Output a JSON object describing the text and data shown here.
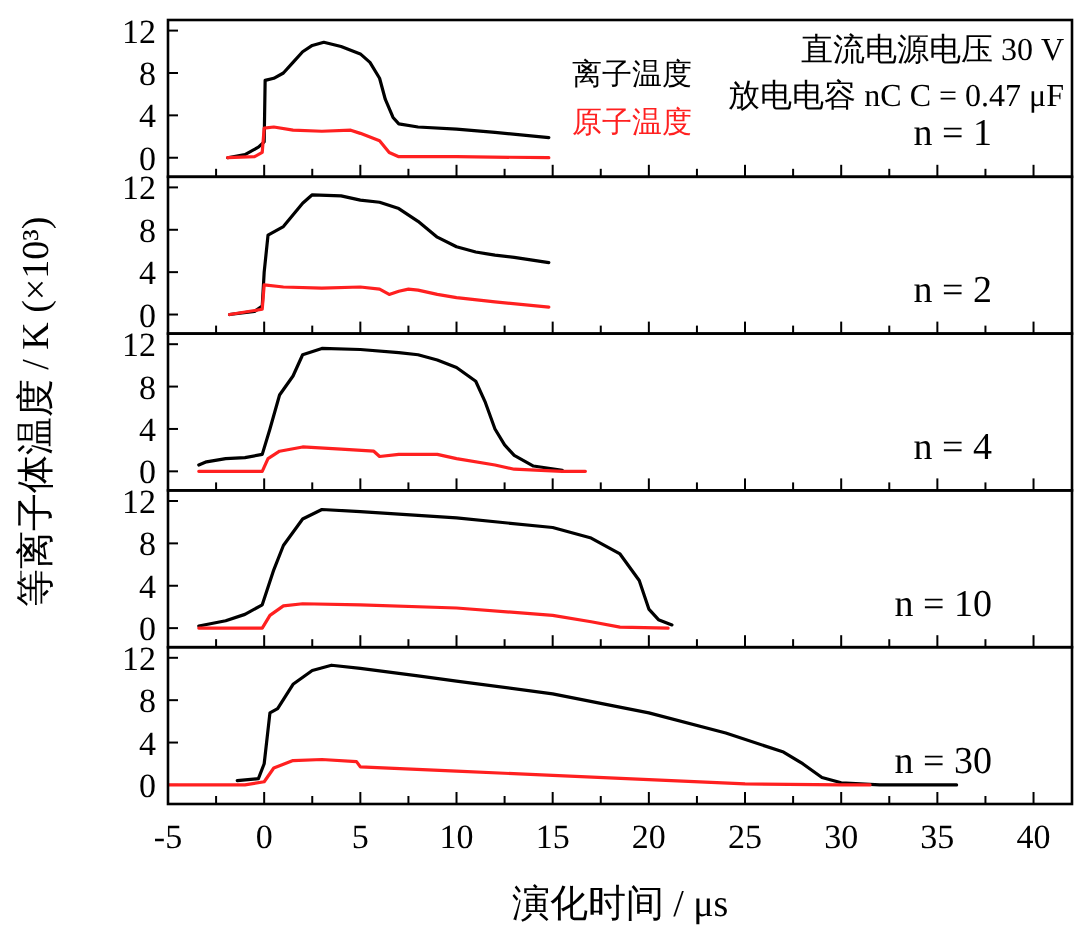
{
  "chart_data": [
    {
      "type": "line",
      "xlim": [
        -5,
        42
      ],
      "ylim": [
        -1.8,
        13
      ],
      "yticks": [
        0,
        4,
        8,
        12
      ],
      "xticks": [
        -5,
        {
          "value": -2.5,
          "label": null
        },
        0,
        {
          "value": 2.5,
          "label": null
        },
        5,
        {
          "value": 7.5,
          "label": null
        },
        10,
        {
          "value": 12.5,
          "label": null
        },
        15,
        {
          "value": 17.5,
          "label": null
        },
        20,
        {
          "value": 22.5,
          "label": null
        },
        25,
        {
          "value": 27.5,
          "label": null
        },
        30,
        {
          "value": 32.5,
          "label": null
        },
        35,
        {
          "value": 37.5,
          "label": null
        },
        40
      ],
      "tick_labels": "y",
      "legend": "right",
      "annotations": [
        "直流电源电压 30 V",
        "放电电容 nC  C = 0.47 μF",
        "n = 1"
      ],
      "series": [
        {
          "name": "离子温度",
          "color": "#000000",
          "x": [
            -1.9,
            -1,
            -0.3,
            0,
            0.05,
            0.5,
            1,
            1.5,
            2,
            2.5,
            3.1,
            4,
            5,
            5.5,
            6,
            6.3,
            6.7,
            7,
            8,
            10,
            12,
            14.8
          ],
          "values": [
            0,
            0.3,
            1.0,
            1.5,
            7.3,
            7.5,
            8,
            9,
            10,
            10.6,
            10.9,
            10.5,
            9.8,
            9,
            7.5,
            5.5,
            3.8,
            3.2,
            2.9,
            2.7,
            2.4,
            1.9
          ]
        },
        {
          "name": "原子温度",
          "color": "#ff2020",
          "x": [
            -1.9,
            -0.5,
            -0.1,
            0,
            0.5,
            1.5,
            3,
            4.5,
            5,
            6,
            6.5,
            7,
            10,
            14.8
          ],
          "values": [
            0,
            0.1,
            0.5,
            2.8,
            2.9,
            2.6,
            2.5,
            2.6,
            2.3,
            1.6,
            0.5,
            0.1,
            0.1,
            0
          ]
        }
      ]
    },
    {
      "type": "line",
      "xlim": [
        -5,
        42
      ],
      "ylim": [
        -1.8,
        13
      ],
      "yticks": [
        0,
        4,
        8,
        12
      ],
      "xticks": [
        -5,
        {
          "value": -2.5,
          "label": null
        },
        0,
        {
          "value": 2.5,
          "label": null
        },
        5,
        {
          "value": 7.5,
          "label": null
        },
        10,
        {
          "value": 12.5,
          "label": null
        },
        15,
        {
          "value": 17.5,
          "label": null
        },
        20,
        {
          "value": 22.5,
          "label": null
        },
        25,
        {
          "value": 27.5,
          "label": null
        },
        30,
        {
          "value": 32.5,
          "label": null
        },
        35,
        {
          "value": 37.5,
          "label": null
        },
        40
      ],
      "tick_labels": "y",
      "annotations": [
        "n = 2"
      ],
      "series": [
        {
          "color": "#000000",
          "x": [
            -1.8,
            -0.5,
            -0.1,
            0,
            0.2,
            1,
            2,
            2.5,
            4,
            5,
            6,
            7,
            8,
            9,
            10,
            11,
            12,
            13,
            14.8
          ],
          "values": [
            0,
            0.3,
            0.8,
            4,
            7.5,
            8.3,
            10.5,
            11.3,
            11.2,
            10.8,
            10.6,
            10,
            8.8,
            7.3,
            6.4,
            5.9,
            5.6,
            5.4,
            4.9
          ]
        },
        {
          "color": "#ff2020",
          "x": [
            -1.8,
            -0.1,
            0,
            1,
            3,
            5,
            6,
            6.5,
            7,
            7.5,
            8,
            9,
            10,
            12,
            14.8
          ],
          "values": [
            0,
            0.5,
            2.8,
            2.6,
            2.5,
            2.6,
            2.4,
            1.9,
            2.2,
            2.4,
            2.3,
            1.9,
            1.6,
            1.2,
            0.7
          ]
        }
      ]
    },
    {
      "type": "line",
      "xlim": [
        -5,
        42
      ],
      "ylim": [
        -1.8,
        13
      ],
      "yticks": [
        0,
        4,
        8,
        12
      ],
      "xticks": [
        -5,
        {
          "value": -2.5,
          "label": null
        },
        0,
        {
          "value": 2.5,
          "label": null
        },
        5,
        {
          "value": 7.5,
          "label": null
        },
        10,
        {
          "value": 12.5,
          "label": null
        },
        15,
        {
          "value": 17.5,
          "label": null
        },
        20,
        {
          "value": 22.5,
          "label": null
        },
        25,
        {
          "value": 27.5,
          "label": null
        },
        30,
        {
          "value": 32.5,
          "label": null
        },
        35,
        {
          "value": 37.5,
          "label": null
        },
        40
      ],
      "tick_labels": "y",
      "ylabel": "等离子体温度 / K (×10³)",
      "annotations": [
        "n = 4"
      ],
      "series": [
        {
          "color": "#000000",
          "x": [
            -3.4,
            -3,
            -2,
            -1,
            -0.1,
            0.3,
            0.8,
            1.5,
            2,
            3,
            5,
            7,
            8,
            9,
            10,
            11,
            11.5,
            12,
            12.5,
            13,
            14,
            15.5
          ],
          "values": [
            0.6,
            0.9,
            1.2,
            1.3,
            1.6,
            4,
            7.2,
            9,
            11,
            11.6,
            11.5,
            11.2,
            11,
            10.5,
            9.8,
            8.5,
            6.5,
            4,
            2.5,
            1.5,
            0.5,
            0.1
          ]
        },
        {
          "color": "#ff2020",
          "x": [
            -3.4,
            -0.1,
            0.2,
            0.8,
            2,
            4,
            5.7,
            6,
            7,
            9,
            10,
            12,
            13,
            15.5,
            16.7
          ],
          "values": [
            0,
            0,
            1.2,
            1.9,
            2.3,
            2.1,
            1.9,
            1.4,
            1.6,
            1.6,
            1.2,
            0.6,
            0.2,
            0,
            0
          ]
        }
      ]
    },
    {
      "type": "line",
      "xlim": [
        -5,
        42
      ],
      "ylim": [
        -1.8,
        13
      ],
      "yticks": [
        0,
        4,
        8,
        12
      ],
      "xticks": [
        -5,
        {
          "value": -2.5,
          "label": null
        },
        0,
        {
          "value": 2.5,
          "label": null
        },
        5,
        {
          "value": 7.5,
          "label": null
        },
        10,
        {
          "value": 12.5,
          "label": null
        },
        15,
        {
          "value": 17.5,
          "label": null
        },
        20,
        {
          "value": 22.5,
          "label": null
        },
        25,
        {
          "value": 27.5,
          "label": null
        },
        30,
        {
          "value": 32.5,
          "label": null
        },
        35,
        {
          "value": 37.5,
          "label": null
        },
        40
      ],
      "tick_labels": "y",
      "annotations": [
        "n = 10"
      ],
      "series": [
        {
          "color": "#000000",
          "x": [
            -3.4,
            -2,
            -1,
            -0.1,
            0.5,
            1,
            2,
            3,
            5,
            10,
            15,
            17,
            18.5,
            19.5,
            20,
            20.5,
            21.2
          ],
          "values": [
            0.2,
            0.7,
            1.3,
            2.2,
            5.5,
            7.8,
            10.3,
            11.2,
            11,
            10.4,
            9.5,
            8.5,
            7,
            4.5,
            1.8,
            0.8,
            0.3
          ]
        },
        {
          "color": "#ff2020",
          "x": [
            -3.4,
            -0.1,
            0.3,
            1,
            2,
            5,
            10,
            15,
            17,
            18.5,
            21
          ],
          "values": [
            0,
            0,
            1.2,
            2.1,
            2.3,
            2.2,
            1.9,
            1.2,
            0.6,
            0.1,
            0
          ]
        }
      ]
    },
    {
      "type": "line",
      "xlim": [
        -5,
        42
      ],
      "ylim": [
        -1.8,
        13
      ],
      "yticks": [
        0,
        4,
        8,
        12
      ],
      "xticks": [
        -5,
        {
          "value": -2.5,
          "label": null
        },
        0,
        {
          "value": 2.5,
          "label": null
        },
        5,
        {
          "value": 7.5,
          "label": null
        },
        10,
        {
          "value": 12.5,
          "label": null
        },
        15,
        {
          "value": 17.5,
          "label": null
        },
        20,
        {
          "value": 22.5,
          "label": null
        },
        25,
        {
          "value": 27.5,
          "label": null
        },
        30,
        {
          "value": 32.5,
          "label": null
        },
        35,
        {
          "value": 37.5,
          "label": null
        },
        40
      ],
      "xlabel": "演化时间 / μs",
      "annotations": [
        "n = 30"
      ],
      "series": [
        {
          "color": "#000000",
          "x": [
            -1.4,
            -0.3,
            0,
            0.3,
            0.7,
            1.5,
            2.5,
            3.5,
            5,
            8,
            10,
            15,
            20,
            24,
            27,
            28,
            29,
            30,
            32,
            36
          ],
          "values": [
            0.4,
            0.6,
            2,
            6.8,
            7.2,
            9.5,
            10.8,
            11.3,
            11,
            10.3,
            9.8,
            8.6,
            6.8,
            4.9,
            3.1,
            2,
            0.7,
            0.2,
            0,
            0
          ]
        },
        {
          "color": "#ff2020",
          "x": [
            -5,
            -1,
            0,
            0.5,
            1.5,
            3,
            4.8,
            5,
            10,
            15,
            20,
            25,
            30,
            31.5
          ],
          "values": [
            0,
            0,
            0.3,
            1.6,
            2.3,
            2.4,
            2.2,
            1.7,
            1.3,
            0.9,
            0.5,
            0.1,
            0,
            0
          ]
        }
      ]
    }
  ]
}
